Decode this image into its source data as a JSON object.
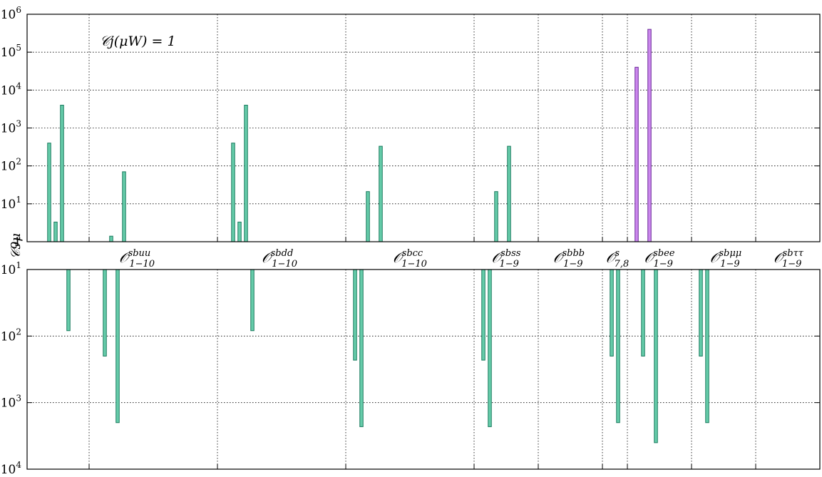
{
  "chart_data": {
    "type": "bar",
    "ylabel": "𝒞9μ",
    "annotation": "𝒞j(μW) = 1",
    "y_scale": "symlog",
    "ylim_positive": [
      1,
      1000000
    ],
    "ylim_negative": [
      -10,
      -10000
    ],
    "grid": true,
    "colors": {
      "default": "#66ccaa",
      "default_edge": "#1a7a5e",
      "highlight": "#cc88ee",
      "highlight_edge": "#6a2a99"
    },
    "y_ticks": [
      {
        "sign": "",
        "base": "10",
        "exp": "6",
        "value": 1000000
      },
      {
        "sign": "",
        "base": "10",
        "exp": "5",
        "value": 100000
      },
      {
        "sign": "",
        "base": "10",
        "exp": "4",
        "value": 10000
      },
      {
        "sign": "",
        "base": "10",
        "exp": "3",
        "value": 1000
      },
      {
        "sign": "",
        "base": "10",
        "exp": "2",
        "value": 100
      },
      {
        "sign": "",
        "base": "10",
        "exp": "1",
        "value": 10
      },
      {
        "sign": "",
        "base": "1",
        "exp": "",
        "value": 1
      },
      {
        "sign": "−",
        "base": "10",
        "exp": "1",
        "value": -10
      },
      {
        "sign": "−",
        "base": "10",
        "exp": "2",
        "value": -100
      },
      {
        "sign": "−",
        "base": "10",
        "exp": "3",
        "value": -1000
      },
      {
        "sign": "−",
        "base": "10",
        "exp": "4",
        "value": -10000
      }
    ],
    "groups": [
      {
        "name": "𝒪",
        "sup": "sbuu",
        "sub": "1−10",
        "n": 10,
        "bars": [
          {
            "i": 2,
            "value": 400
          },
          {
            "i": 3,
            "value": 3.3
          },
          {
            "i": 4,
            "value": 4000
          },
          {
            "i": 5,
            "value": -83
          }
        ]
      },
      {
        "name": "𝒪",
        "sup": "sbdd",
        "sub": "1−10",
        "n": 10,
        "bars": [
          {
            "i": 1,
            "value": -200
          },
          {
            "i": 2,
            "value": 1.4
          },
          {
            "i": 3,
            "value": -2000
          },
          {
            "i": 4,
            "value": 70
          }
        ]
      },
      {
        "name": "𝒪",
        "sup": "sbcc",
        "sub": "1−10",
        "n": 10,
        "bars": [
          {
            "i": 1,
            "value": 400
          },
          {
            "i": 2,
            "value": 3.3
          },
          {
            "i": 3,
            "value": 4000
          },
          {
            "i": 4,
            "value": -83
          }
        ]
      },
      {
        "name": "𝒪",
        "sup": "sbss",
        "sub": "1−9",
        "n": 5,
        "bars": [
          {
            "i": 0,
            "value": -230
          },
          {
            "i": 1,
            "value": -2300
          },
          {
            "i": 2,
            "value": 21
          },
          {
            "i": 4,
            "value": 330
          }
        ]
      },
      {
        "name": "𝒪",
        "sup": "sbbb",
        "sub": "1−9",
        "n": 5,
        "bars": [
          {
            "i": 0,
            "value": -230
          },
          {
            "i": 1,
            "value": -2300
          },
          {
            "i": 2,
            "value": 21
          },
          {
            "i": 4,
            "value": 330
          }
        ]
      },
      {
        "name": "𝒪",
        "sup": "s",
        "sub": "7,8",
        "n": 2,
        "bars": []
      },
      {
        "name": "𝒪",
        "sup": "sbee",
        "sub": "1−9",
        "n": 5,
        "bars": [
          {
            "i": 0,
            "value": -200
          },
          {
            "i": 1,
            "value": -2000
          }
        ]
      },
      {
        "name": "𝒪",
        "sup": "sbμμ",
        "sub": "1−9",
        "n": 5,
        "bars": [
          {
            "i": 0,
            "value": 40000,
            "highlight": true
          },
          {
            "i": 1,
            "value": -200
          },
          {
            "i": 2,
            "value": 400000,
            "highlight": true
          },
          {
            "i": 3,
            "value": -4000
          }
        ]
      },
      {
        "name": "𝒪",
        "sup": "sbττ",
        "sub": "1−9",
        "n": 5,
        "bars": [
          {
            "i": 0,
            "value": -200
          },
          {
            "i": 1,
            "value": -2000
          }
        ]
      }
    ]
  }
}
